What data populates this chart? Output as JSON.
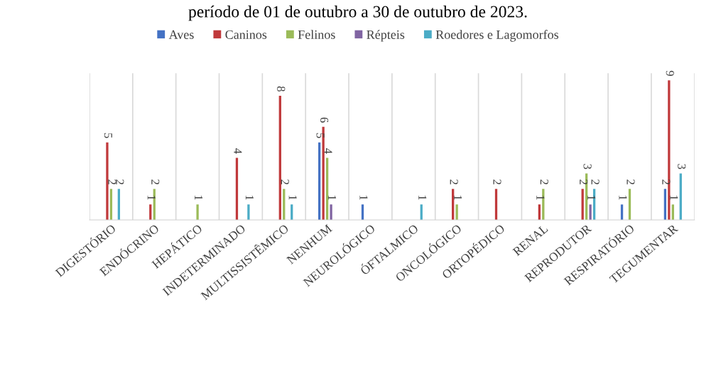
{
  "chart_data": {
    "type": "bar",
    "title": "período de 01 de outubro a 30 de outubro de 2023.",
    "categories": [
      "DIGESTÓRIO",
      "ENDÓCRINO",
      "HEPÁTICO",
      "INDETERMINADO",
      "MULTISSISTÊMICO",
      "NENHUM",
      "NEUROLÓGICO",
      "ÓFTALMICO",
      "ONCOLÓGICO",
      "ORTOPÉDICO",
      "RENAL",
      "REPRODUTOR",
      "RESPIRATÓRIO",
      "TEGUMENTAR"
    ],
    "series": [
      {
        "name": "Aves",
        "color": "#4472c4",
        "values": [
          null,
          null,
          null,
          null,
          null,
          5,
          1,
          null,
          null,
          null,
          null,
          null,
          1,
          2
        ]
      },
      {
        "name": "Caninos",
        "color": "#c0393b",
        "values": [
          5,
          1,
          null,
          4,
          8,
          6,
          null,
          null,
          2,
          2,
          1,
          2,
          null,
          9
        ]
      },
      {
        "name": "Felinos",
        "color": "#9bbb59",
        "values": [
          2,
          2,
          1,
          null,
          2,
          4,
          null,
          null,
          1,
          null,
          2,
          3,
          2,
          1
        ]
      },
      {
        "name": "Répteis",
        "color": "#8064a2",
        "values": [
          null,
          null,
          null,
          null,
          null,
          1,
          null,
          null,
          null,
          null,
          null,
          1,
          null,
          null
        ]
      },
      {
        "name": "Roedores e Lagomorfos",
        "color": "#4bacc6",
        "values": [
          2,
          null,
          null,
          1,
          1,
          null,
          null,
          1,
          null,
          null,
          null,
          2,
          null,
          3
        ]
      }
    ],
    "data_labels": true,
    "grid": "x",
    "legend": "top"
  }
}
